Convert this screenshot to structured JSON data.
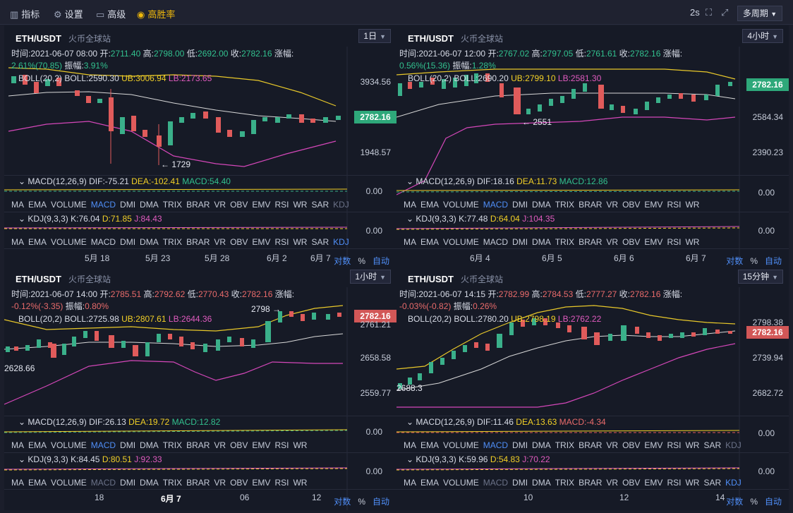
{
  "toolbar": {
    "items": [
      {
        "label": "指标",
        "icon": "chart-bars-icon"
      },
      {
        "label": "设置",
        "icon": "gear-icon"
      },
      {
        "label": "高级",
        "icon": "folder-icon"
      },
      {
        "label": "高胜率",
        "icon": "target-icon"
      }
    ],
    "refresh": "2s",
    "multi_period": "多周期"
  },
  "common": {
    "pair": "ETH/USDT",
    "exchange": "火币全球站",
    "price_tag": "2782.16",
    "boll_name": "BOLL(20,2)",
    "macd_name": "MACD(12,26,9)",
    "kdj_name": "KDJ(9,3,3)",
    "zero": "0.00",
    "bottom": [
      "对数",
      "%",
      "自动"
    ],
    "tabs": [
      "MA",
      "EMA",
      "VOLUME",
      "MACD",
      "DMI",
      "DMA",
      "TRIX",
      "BRAR",
      "VR",
      "OBV",
      "EMV",
      "RSI",
      "WR",
      "SAR",
      "KDJ"
    ],
    "label_time": "时间:",
    "label_open": "开:",
    "label_high": "高:",
    "label_low": "低:",
    "label_close": "收:",
    "label_change": "涨幅:",
    "label_amp": "振幅:",
    "label_dif": "DIF:",
    "label_dea": "DEA:",
    "label_macd": "MACD:",
    "label_ub": "UB:",
    "label_lb": "LB:"
  },
  "panels": [
    {
      "timeframe": "1日",
      "time": "2021-06-07 08:00",
      "open": "2711.40",
      "high": "2798.00",
      "low": "2692.00",
      "close": "2782.16",
      "change": "2.61%(70.85)",
      "amp": "3.91%",
      "boll": "2590.30",
      "ub": "3006.94",
      "lb": "2173.65",
      "y_labels": [
        "3934.56",
        "1948.57"
      ],
      "annotation": "← 1729",
      "macd": {
        "dif": "-75.21",
        "dea": "-102.41",
        "macd": "54.40"
      },
      "kdj": {
        "k": "K:76.04",
        "d": "D:71.85",
        "j": "J:84.43"
      },
      "x_labels": [
        "5月 18",
        "5月 23",
        "5月 28",
        "6月 2",
        "6月 7"
      ],
      "price_tag_color": "green"
    },
    {
      "timeframe": "4小时",
      "time": "2021-06-07 12:00",
      "open": "2767.02",
      "high": "2797.05",
      "low": "2761.61",
      "close": "2782.16",
      "change": "0.56%(15.36)",
      "amp": "1.28%",
      "boll": "2690.20",
      "ub": "2799.10",
      "lb": "2581.30",
      "y_labels": [
        "2584.34",
        "2390.23"
      ],
      "annotation": "← 2551",
      "macd": {
        "dif": "18.16",
        "dea": "11.73",
        "macd": "12.86"
      },
      "kdj": {
        "k": "K:77.48",
        "d": "D:64.04",
        "j": "J:104.35"
      },
      "x_labels": [
        "6月 4",
        "6月 5",
        "6月 6",
        "6月 7"
      ],
      "price_tag_color": "green"
    },
    {
      "timeframe": "1小时",
      "time": "2021-06-07 14:00",
      "open": "2785.51",
      "high": "2792.62",
      "low": "2770.43",
      "close": "2782.16",
      "change": "-0.12%(-3.35)",
      "amp": "0.80%",
      "boll": "2725.98",
      "ub": "2807.61",
      "lb": "2644.36",
      "y_labels": [
        "2761.21",
        "2658.58",
        "2559.77"
      ],
      "annotation_hi": "2798 →",
      "annotation": "2628.66",
      "macd": {
        "dif": "26.13",
        "dea": "19.72",
        "macd": "12.82"
      },
      "kdj": {
        "k": "K:84.45",
        "d": "D:80.51",
        "j": "J:92.33"
      },
      "x_labels": [
        "18",
        "6月 7",
        "06",
        "12"
      ],
      "price_tag_color": "red"
    },
    {
      "timeframe": "15分钟",
      "time": "2021-06-07 14:15",
      "open": "2782.99",
      "high": "2784.53",
      "low": "2777.27",
      "close": "2782.16",
      "change": "-0.03%(-0.82)",
      "amp": "0.26%",
      "boll": "2780.20",
      "ub": "2798.19",
      "lb": "2762.22",
      "y_labels": [
        "2798.38",
        "2739.94",
        "2682.72"
      ],
      "annotation": "2688.3",
      "macd": {
        "dif": "11.46",
        "dea": "13.63",
        "macd": "-4.34"
      },
      "kdj": {
        "k": "K:59.96",
        "d": "D:54.83",
        "j": "J:70.22"
      },
      "x_labels": [
        "10",
        "12",
        "14"
      ],
      "price_tag_color": "red"
    }
  ]
}
